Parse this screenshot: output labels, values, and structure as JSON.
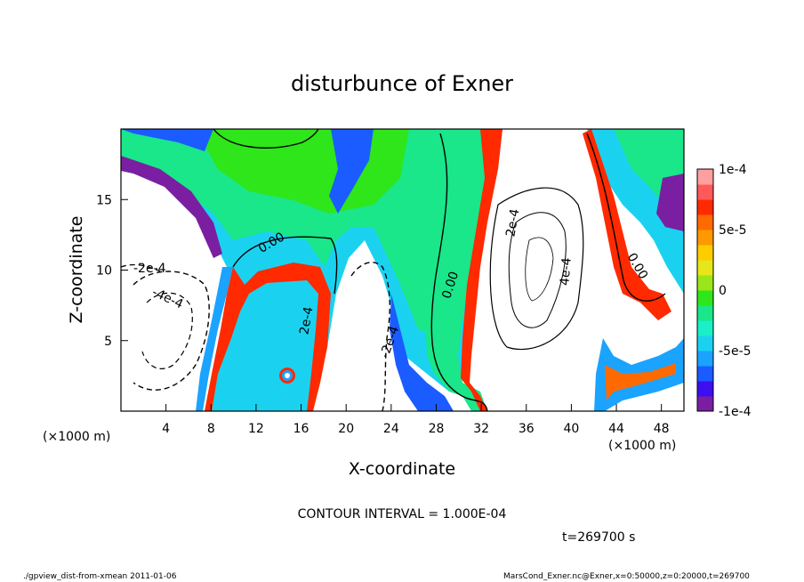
{
  "chart_data": {
    "type": "heatmap",
    "title": "disturbunce of Exner",
    "xlabel": "X-coordinate",
    "ylabel": "Z-coordinate",
    "x_unit_note": "(×1000 m)",
    "y_unit_note": "(×1000 m)",
    "xlim": [
      0,
      50
    ],
    "ylim": [
      0,
      20
    ],
    "xticks": [
      4,
      8,
      12,
      16,
      20,
      24,
      28,
      32,
      36,
      40,
      44,
      48
    ],
    "yticks": [
      5,
      10,
      15
    ],
    "colorbar": {
      "min": -0.0001,
      "max": 0.0001,
      "tick_labels": [
        "1e-4",
        "5e-5",
        "0",
        "-5e-5",
        "-1e-4"
      ],
      "colors": [
        "#7a1fa2",
        "#3c0ef0",
        "#1a5cff",
        "#1aa3ff",
        "#1ad2f0",
        "#1af0c8",
        "#1ae68a",
        "#2ee61a",
        "#9be61a",
        "#e6e61a",
        "#ffcc00",
        "#ff9900",
        "#ff6a00",
        "#ff2a00",
        "#ff5a5a",
        "#ffa0a0"
      ]
    },
    "contour_labels": [
      "0.00",
      "0.00",
      "0.00",
      "-2e-4",
      "-4e-4",
      "-2e-4",
      "2e-4",
      "2e-4",
      "4e-4"
    ],
    "contour_interval_text": "CONTOUR INTERVAL = 1.000E-04",
    "time_text": "t=269700 s"
  },
  "footer": {
    "left": "./gpview_dist-from-xmean  2011-01-06",
    "right": "MarsCond_Exner.nc@Exner,x=0:50000,z=0:20000,t=269700"
  },
  "colors": {
    "frame": "#000000",
    "background": "#ffffff"
  }
}
